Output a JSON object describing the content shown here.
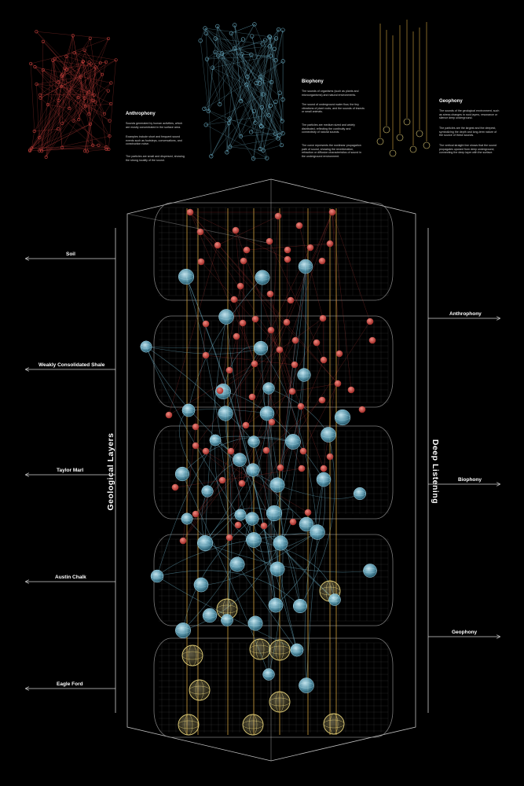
{
  "legend": {
    "anthrophony": {
      "title": "Anthrophony",
      "paragraphs": [
        "Sounds generated by human activities, which are mostly concentrated in the surface area.",
        "Examples include short and frequent sound events such as footsteps, conversations, and construction noise.",
        "The particles are small and dispersed, showing the strong locality of the sound."
      ]
    },
    "biophony": {
      "title": "Biophony",
      "paragraphs": [
        "The sounds of organisms (such as plants and microorganisms) and natural environments.",
        "The sound of underground water flow, the tiny vibrations of plant roots, and the sounds of insects or small animals.",
        "The particles are medium sized and widely distributed, reflecting the continuity and connectivity of natural sounds.",
        "The curve represents the nonlinear propagation path of sound, showing the reverberation, refraction or diffusion characteristics of sound in the underground environment."
      ]
    },
    "geophony": {
      "title": "Geophony",
      "paragraphs": [
        "The sounds of the geological environment, such as stress changes in rock layers, resonance or silence deep underground.",
        "The particles are the largest and the deepest, symbolizing the depth and long-term nature of the source of these sounds.",
        "The vertical straight line shows that the sound propagates upward from deep underground, connecting the deep layer with the surface."
      ]
    }
  },
  "left_axis": {
    "title": "Geological   Layers",
    "layers": [
      "Soil",
      "Weakly Consolidated Shale",
      "Taylor Marl",
      "Austin Chalk",
      "Eagle Ford"
    ]
  },
  "right_axis": {
    "title": "Deep Listening",
    "sounds": [
      "Anthrophony",
      "Biophony",
      "Geophony"
    ]
  },
  "colors": {
    "background": "#000000",
    "anthrophony": "#c8403c",
    "biophony": "#6fb4cc",
    "geophony": "#e6d27a",
    "mesh": "#9a9a9a",
    "geo_line": "#d7a640"
  },
  "icons": [
    "arrow-left-icon",
    "arrow-right-icon"
  ]
}
